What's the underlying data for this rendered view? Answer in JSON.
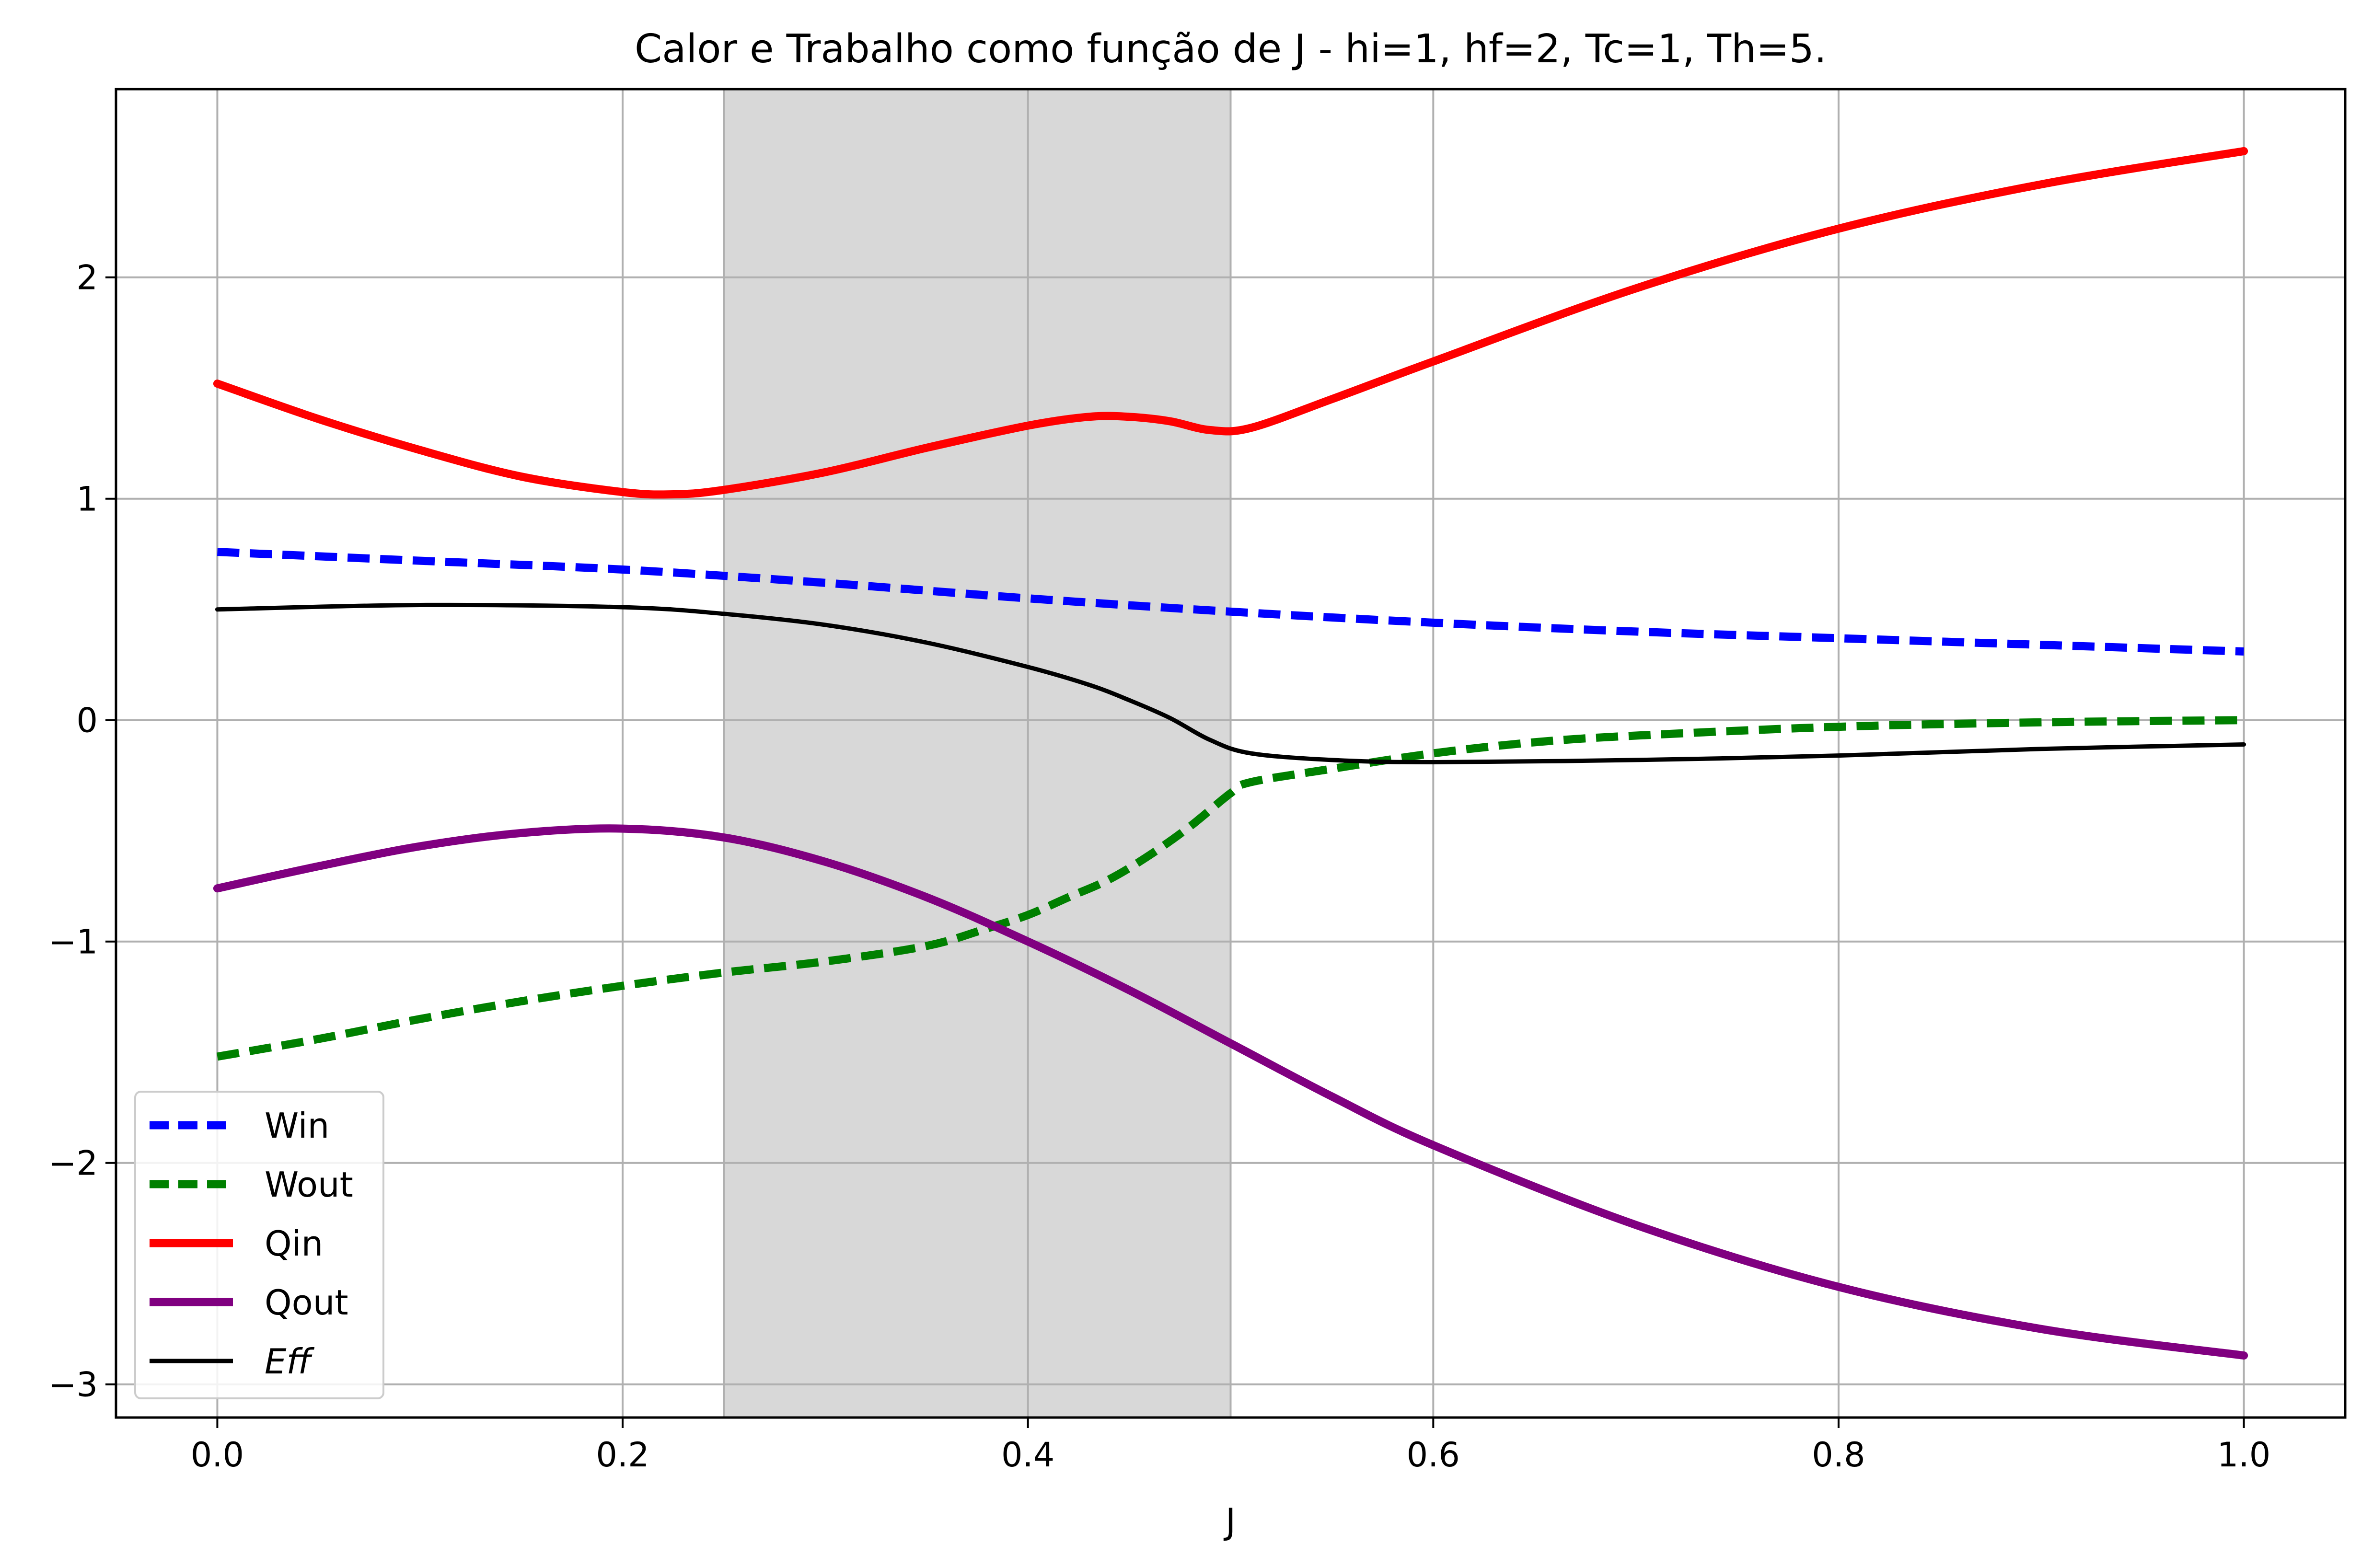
{
  "chart_data": {
    "type": "line",
    "title": "Calor e Trabalho como função de J - hi=1, hf=2, Tc=1, Th=5.",
    "xlabel": "J",
    "ylabel": "",
    "xlim": [
      -0.05,
      1.05
    ],
    "ylim": [
      -3.15,
      2.85
    ],
    "xticks": [
      0.0,
      0.2,
      0.4,
      0.6,
      0.8,
      1.0
    ],
    "xtick_labels": [
      "0.0",
      "0.2",
      "0.4",
      "0.6",
      "0.8",
      "1.0"
    ],
    "yticks": [
      -3,
      -2,
      -1,
      0,
      1,
      2
    ],
    "ytick_labels": [
      "−3",
      "−2",
      "−1",
      "0",
      "1",
      "2"
    ],
    "grid": true,
    "legend_position": "lower-left",
    "shaded_region": {
      "x_start": 0.25,
      "x_end": 0.5,
      "color": "#d8d8d8"
    },
    "series": [
      {
        "name": "Win",
        "color": "#0000ff",
        "style": "dashed",
        "width": "thick",
        "x": [
          0.0,
          0.1,
          0.2,
          0.3,
          0.4,
          0.5,
          0.6,
          0.7,
          0.8,
          0.9,
          1.0
        ],
        "y": [
          0.76,
          0.72,
          0.68,
          0.62,
          0.55,
          0.49,
          0.44,
          0.4,
          0.37,
          0.34,
          0.31
        ]
      },
      {
        "name": "Wout",
        "color": "#008000",
        "style": "dashed",
        "width": "thick",
        "x": [
          0.0,
          0.05,
          0.1,
          0.15,
          0.2,
          0.25,
          0.3,
          0.35,
          0.38,
          0.4,
          0.42,
          0.44,
          0.46,
          0.48,
          0.5,
          0.51,
          0.55,
          0.6,
          0.65,
          0.7,
          0.8,
          0.9,
          1.0
        ],
        "y": [
          -1.52,
          -1.44,
          -1.35,
          -1.27,
          -1.2,
          -1.14,
          -1.09,
          -1.02,
          -0.94,
          -0.88,
          -0.8,
          -0.72,
          -0.61,
          -0.48,
          -0.33,
          -0.28,
          -0.22,
          -0.15,
          -0.1,
          -0.07,
          -0.03,
          -0.01,
          0.0
        ]
      },
      {
        "name": "Qin",
        "color": "#ff0000",
        "style": "solid",
        "width": "thick",
        "x": [
          0.0,
          0.05,
          0.1,
          0.15,
          0.2,
          0.225,
          0.25,
          0.3,
          0.35,
          0.4,
          0.43,
          0.45,
          0.47,
          0.49,
          0.51,
          0.55,
          0.6,
          0.7,
          0.8,
          0.9,
          1.0
        ],
        "y": [
          1.52,
          1.36,
          1.22,
          1.1,
          1.03,
          1.02,
          1.04,
          1.12,
          1.23,
          1.33,
          1.37,
          1.37,
          1.35,
          1.31,
          1.32,
          1.45,
          1.62,
          1.95,
          2.22,
          2.42,
          2.57
        ]
      },
      {
        "name": "Qout",
        "color": "#800080",
        "style": "solid",
        "width": "thick",
        "x": [
          0.0,
          0.05,
          0.1,
          0.15,
          0.2,
          0.25,
          0.3,
          0.35,
          0.4,
          0.45,
          0.5,
          0.55,
          0.6,
          0.7,
          0.8,
          0.9,
          1.0
        ],
        "y": [
          -0.76,
          -0.66,
          -0.57,
          -0.51,
          -0.49,
          -0.53,
          -0.64,
          -0.8,
          -1.0,
          -1.22,
          -1.46,
          -1.7,
          -1.92,
          -2.28,
          -2.56,
          -2.75,
          -2.87
        ]
      },
      {
        "name": "Eff",
        "color": "#000000",
        "style": "solid",
        "width": "thin",
        "italic_label": true,
        "x": [
          0.0,
          0.1,
          0.2,
          0.25,
          0.3,
          0.35,
          0.4,
          0.43,
          0.45,
          0.47,
          0.49,
          0.51,
          0.55,
          0.6,
          0.7,
          0.8,
          0.9,
          1.0
        ],
        "y": [
          0.5,
          0.52,
          0.51,
          0.48,
          0.43,
          0.35,
          0.24,
          0.16,
          0.09,
          0.01,
          -0.09,
          -0.15,
          -0.18,
          -0.19,
          -0.18,
          -0.16,
          -0.13,
          -0.11
        ]
      }
    ]
  }
}
